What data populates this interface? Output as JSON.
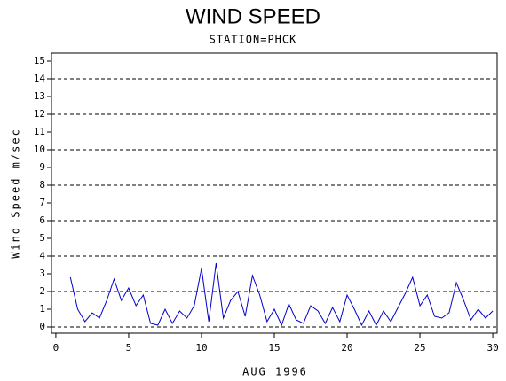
{
  "chart_data": {
    "type": "line",
    "title": "WIND SPEED",
    "subtitle": "STATION=PHCK",
    "x_label": "AUG 1996",
    "y_label": "Wind Speed m/sec",
    "xlim": [
      -0.3,
      30.3
    ],
    "ylim": [
      -0.35,
      15.45
    ],
    "xticks": [
      0,
      5,
      10,
      15,
      20,
      25,
      30
    ],
    "yticks": [
      0,
      1,
      2,
      3,
      4,
      5,
      6,
      7,
      8,
      9,
      10,
      11,
      12,
      13,
      14,
      15
    ],
    "grid": true,
    "series": [
      {
        "color": "#0000cc",
        "x": [
          1.0,
          1.5,
          2.0,
          2.5,
          3.0,
          3.5,
          4.0,
          4.5,
          5.0,
          5.5,
          6.0,
          6.5,
          7.0,
          7.5,
          8.0,
          8.5,
          9.0,
          9.5,
          10.0,
          10.5,
          11.0,
          11.5,
          12.0,
          12.5,
          13.0,
          13.5,
          14.0,
          14.5,
          15.0,
          15.5,
          16.0,
          16.5,
          17.0,
          17.5,
          18.0,
          18.5,
          19.0,
          19.5,
          20.0,
          20.5,
          21.0,
          21.5,
          22.0,
          22.5,
          23.0,
          23.5,
          24.0,
          24.5,
          25.0,
          25.5,
          26.0,
          26.5,
          27.0,
          27.5,
          28.0,
          28.5,
          29.0,
          29.5,
          30.0
        ],
        "values": [
          2.8,
          1.0,
          0.3,
          0.8,
          0.5,
          1.5,
          2.7,
          1.5,
          2.2,
          1.2,
          1.8,
          0.2,
          0.1,
          1.0,
          0.2,
          0.9,
          0.5,
          1.2,
          3.3,
          0.3,
          3.6,
          0.5,
          1.5,
          2.0,
          0.6,
          2.9,
          1.8,
          0.3,
          1.0,
          0.1,
          1.3,
          0.4,
          0.2,
          1.2,
          0.9,
          0.2,
          1.1,
          0.3,
          1.8,
          1.0,
          0.1,
          0.9,
          0.1,
          0.9,
          0.3,
          1.1,
          1.9,
          2.8,
          1.2,
          1.8,
          0.6,
          0.5,
          0.8,
          2.5,
          1.5,
          0.4,
          1.0,
          0.5,
          0.9
        ]
      }
    ]
  }
}
